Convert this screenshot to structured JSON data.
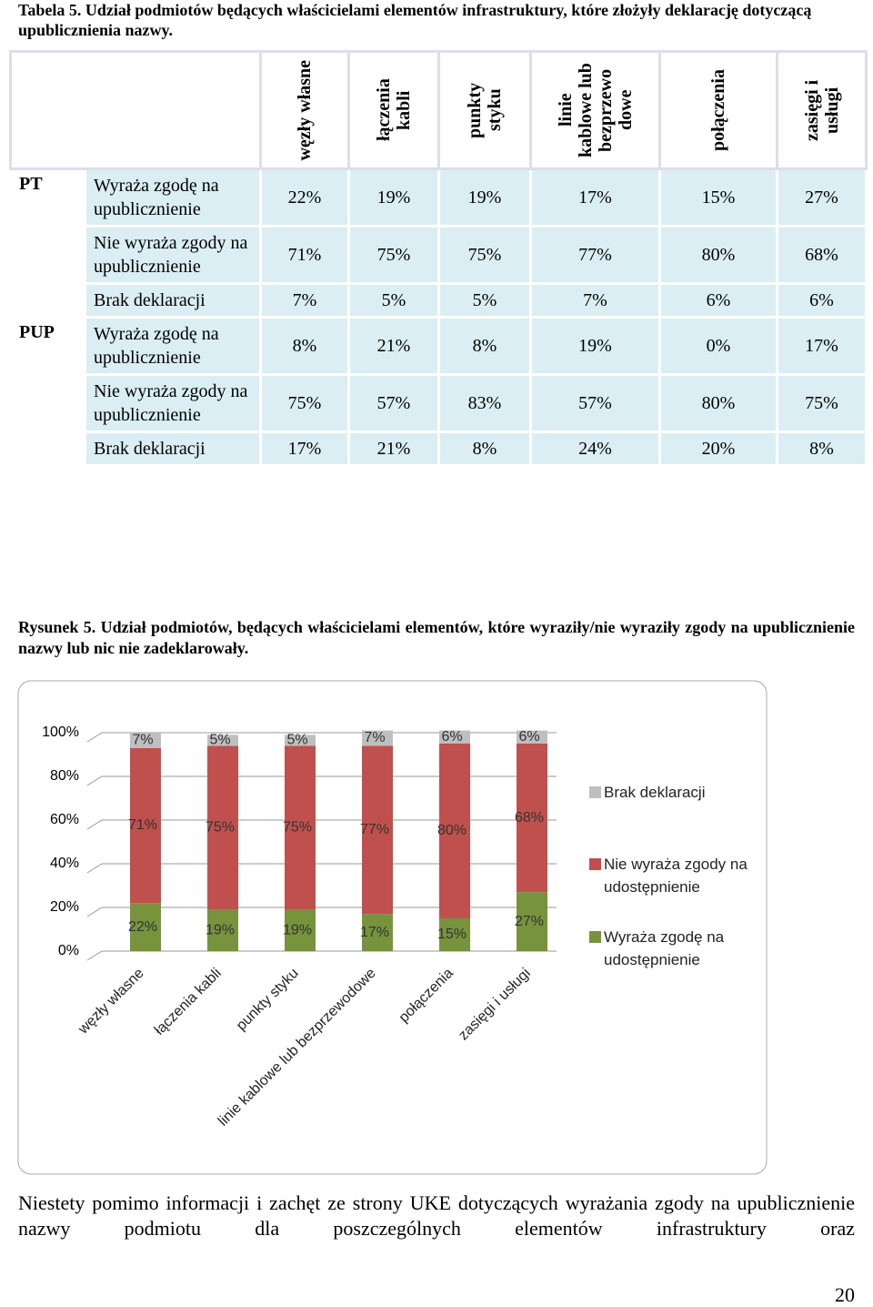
{
  "table_caption": "Tabela 5. Udział podmiotów będących właścicielami elementów infrastruktury, które złożyły deklarację dotyczącą upublicznienia nazwy.",
  "table": {
    "columns": [
      "węzły własne",
      "łączenia kabli",
      "punkty styku",
      "linie kablowe lub bezprzewo dowe",
      "połączenia",
      "zasięgi i usługi"
    ],
    "groups": [
      {
        "name": "PT",
        "rows": [
          {
            "label": "Wyraża zgodę na upublicznienie",
            "cells": [
              "22%",
              "19%",
              "19%",
              "17%",
              "15%",
              "27%"
            ]
          },
          {
            "label": "Nie wyraża zgody na upublicznienie",
            "cells": [
              "71%",
              "75%",
              "75%",
              "77%",
              "80%",
              "68%"
            ]
          },
          {
            "label": "Brak deklaracji",
            "cells": [
              "7%",
              "5%",
              "5%",
              "7%",
              "6%",
              "6%"
            ]
          }
        ]
      },
      {
        "name": "PUP",
        "rows": [
          {
            "label": "Wyraża zgodę na upublicznienie",
            "cells": [
              "8%",
              "21%",
              "8%",
              "19%",
              "0%",
              "17%"
            ]
          },
          {
            "label": "Nie wyraża zgody na upublicznienie",
            "cells": [
              "75%",
              "57%",
              "83%",
              "57%",
              "80%",
              "75%"
            ]
          },
          {
            "label": "Brak deklaracji",
            "cells": [
              "17%",
              "21%",
              "8%",
              "24%",
              "20%",
              "8%"
            ]
          }
        ]
      }
    ]
  },
  "figure_caption": "Rysunek 5. Udział podmiotów, będących właścicielami elementów, które wyraziły/nie wyraziły zgody na upublicznienie nazwy lub nic nie zadeklarowały.",
  "chart_data": {
    "type": "stacked_bar",
    "categories": [
      "węzły własne",
      "łączenia kabli",
      "punkty styku",
      "linie kablowe lub bezprzewodowe",
      "połączenia",
      "zasięgi i usługi"
    ],
    "series": [
      {
        "name": "Wyraża zgodę na udostępnienie",
        "color": "#77933c",
        "values": [
          22,
          19,
          19,
          17,
          15,
          27
        ],
        "value_labels": [
          "22%",
          "19%",
          "19%",
          "17%",
          "15%",
          "27%"
        ]
      },
      {
        "name": "Nie wyraża zgody na udostępnienie",
        "color": "#c0504d",
        "values": [
          71,
          75,
          75,
          77,
          80,
          68
        ],
        "value_labels": [
          "71%",
          "75%",
          "75%",
          "77%",
          "80%",
          "68%"
        ]
      },
      {
        "name": "Brak deklaracji",
        "color": "#bfbfbf",
        "values": [
          7,
          5,
          5,
          7,
          6,
          6
        ],
        "value_labels": [
          "7%",
          "5%",
          "5%",
          "7%",
          "6%",
          "6%"
        ]
      }
    ],
    "ylim": [
      0,
      100
    ],
    "yticks": [
      {
        "value": 0,
        "label": "0%"
      },
      {
        "value": 20,
        "label": "20%"
      },
      {
        "value": 40,
        "label": "40%"
      },
      {
        "value": 60,
        "label": "60%"
      },
      {
        "value": 80,
        "label": "80%"
      },
      {
        "value": 100,
        "label": "100%"
      }
    ],
    "grid": true,
    "legend": "right"
  },
  "body_text": "Niestety pomimo informacji i zachęt ze strony UKE dotyczących wyrażania zgody na upublicznienie nazwy podmiotu dla poszczególnych elementów infrastruktury oraz",
  "page_number": "20"
}
